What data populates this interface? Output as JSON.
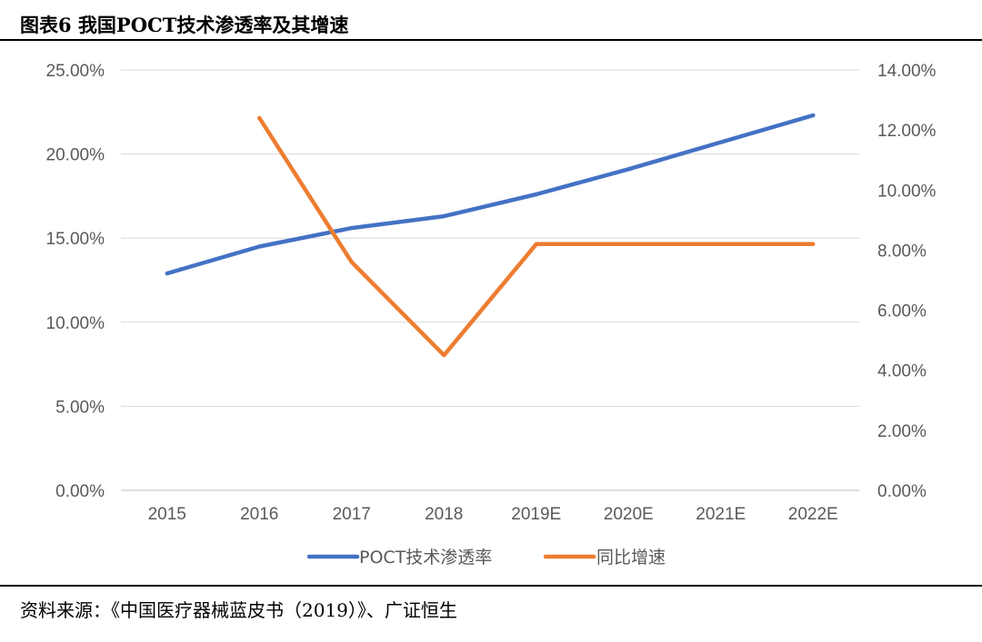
{
  "figure": {
    "title": "图表6 我国POCT技术渗透率及其增速",
    "source": "资料来源：《中国医疗器械蓝皮书（2019）》、广证恒生"
  },
  "chart_data": {
    "type": "line",
    "categories": [
      "2015",
      "2016",
      "2017",
      "2018",
      "2019E",
      "2020E",
      "2021E",
      "2022E"
    ],
    "y_left": {
      "ticks": [
        "0.00%",
        "5.00%",
        "10.00%",
        "15.00%",
        "20.00%",
        "25.00%"
      ],
      "range": [
        0,
        25
      ]
    },
    "y_right": {
      "ticks": [
        "0.00%",
        "2.00%",
        "4.00%",
        "6.00%",
        "8.00%",
        "10.00%",
        "12.00%",
        "14.00%"
      ],
      "range": [
        0,
        14
      ]
    },
    "grid": true,
    "legend_position": "bottom",
    "series": [
      {
        "name": "POCT技术渗透率",
        "axis": "left",
        "color": "#4472C4",
        "values": [
          12.9,
          14.5,
          15.6,
          16.3,
          17.6,
          19.1,
          20.7,
          22.3
        ]
      },
      {
        "name": "同比增速",
        "axis": "right",
        "color": "#ED7D31",
        "values": [
          null,
          12.4,
          7.6,
          4.5,
          8.2,
          8.2,
          8.2,
          8.2
        ]
      }
    ]
  }
}
